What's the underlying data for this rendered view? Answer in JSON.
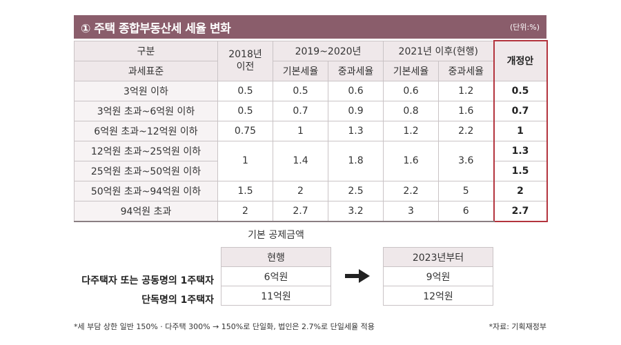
{
  "header": {
    "title": "① 주택 종합부동산세 세율 변화",
    "unit": "(단위:%)"
  },
  "table": {
    "header": {
      "gubun": "구분",
      "tax_base": "과세표준",
      "y2018": "2018년\n이전",
      "y2019": "2019~2020년",
      "y2021": "2021년 이후(현행)",
      "basic": "기본세율",
      "heavy": "중과세율",
      "proposal": "개정안"
    },
    "rows": [
      {
        "bracket": "3억원 이하",
        "y2018": "0.5",
        "b2019": "0.5",
        "h2019": "0.6",
        "b2021": "0.6",
        "h2021": "1.2",
        "prop": "0.5"
      },
      {
        "bracket": "3억원 초과~6억원 이하",
        "y2018": "0.5",
        "b2019": "0.7",
        "h2019": "0.9",
        "b2021": "0.8",
        "h2021": "1.6",
        "prop": "0.7"
      },
      {
        "bracket": "6억원 초과~12억원 이하",
        "y2018": "0.75",
        "b2019": "1",
        "h2019": "1.3",
        "b2021": "1.2",
        "h2021": "2.2",
        "prop": "1"
      },
      {
        "bracket": "12억원 초과~25억원 이하",
        "y2018": "1",
        "b2019": "1.4",
        "h2019": "1.8",
        "b2021": "1.6",
        "h2021": "3.6",
        "prop": "1.3"
      },
      {
        "bracket": "25억원 초과~50억원 이하",
        "prop": "1.5"
      },
      {
        "bracket": "50억원 초과~94억원 이하",
        "y2018": "1.5",
        "b2019": "2",
        "h2019": "2.5",
        "b2021": "2.2",
        "h2021": "5",
        "prop": "2"
      },
      {
        "bracket": "94억원 초과",
        "y2018": "2",
        "b2019": "2.7",
        "h2019": "3.2",
        "b2021": "3",
        "h2021": "6",
        "prop": "2.7"
      }
    ]
  },
  "deduction": {
    "title": "기본 공제금액",
    "current_header": "현행",
    "new_header": "2023년부터",
    "row1_label": "다주택자 또는 공동명의 1주택자",
    "row2_label": "단독명의 1주택자",
    "current": [
      "6억원",
      "11억원"
    ],
    "new": [
      "9억원",
      "12억원"
    ]
  },
  "footnote": "*세 부담 상한 일반 150% · 다주택 300% → 150%로 단일화, 법인은 2.7%로 단일세율 적용",
  "source": "*자료: 기획재정부",
  "colors": {
    "title_bg": "#8a5d6b",
    "proposal_border": "#b3333d",
    "header_bg": "#efe8ea"
  }
}
